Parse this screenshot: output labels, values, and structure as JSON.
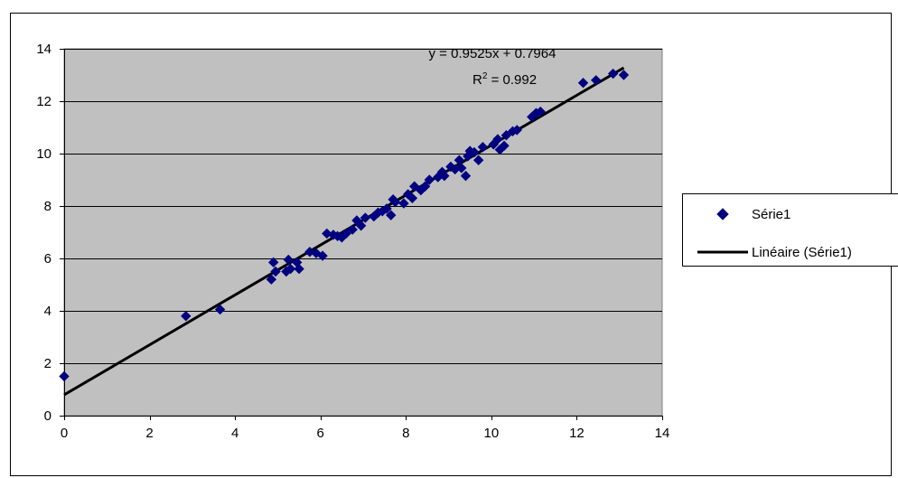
{
  "chart_data": {
    "type": "scatter",
    "title": "",
    "xlabel": "",
    "ylabel": "",
    "xlim": [
      0,
      14
    ],
    "ylim": [
      0,
      14
    ],
    "x_ticks": [
      "0",
      "2",
      "4",
      "6",
      "8",
      "10",
      "12",
      "14"
    ],
    "y_ticks": [
      "0",
      "2",
      "4",
      "6",
      "8",
      "10",
      "12",
      "14"
    ],
    "grid": "horizontal",
    "plot_background": "#C0C0C0",
    "legend_position": "right",
    "series": [
      {
        "name": "Série1",
        "color": "#000080",
        "marker": "diamond",
        "points": [
          [
            0.0,
            1.5
          ],
          [
            2.85,
            3.8
          ],
          [
            3.65,
            4.05
          ],
          [
            4.85,
            5.2
          ],
          [
            4.9,
            5.85
          ],
          [
            4.95,
            5.5
          ],
          [
            5.2,
            5.5
          ],
          [
            5.25,
            5.95
          ],
          [
            5.3,
            5.6
          ],
          [
            5.45,
            5.85
          ],
          [
            5.5,
            5.6
          ],
          [
            5.75,
            6.25
          ],
          [
            5.9,
            6.2
          ],
          [
            6.05,
            6.1
          ],
          [
            6.15,
            6.95
          ],
          [
            6.3,
            6.9
          ],
          [
            6.4,
            6.85
          ],
          [
            6.5,
            6.8
          ],
          [
            6.6,
            6.95
          ],
          [
            6.75,
            7.1
          ],
          [
            6.85,
            7.45
          ],
          [
            6.95,
            7.25
          ],
          [
            7.05,
            7.55
          ],
          [
            7.25,
            7.6
          ],
          [
            7.35,
            7.75
          ],
          [
            7.45,
            7.8
          ],
          [
            7.55,
            7.9
          ],
          [
            7.65,
            7.65
          ],
          [
            7.7,
            8.25
          ],
          [
            7.75,
            8.15
          ],
          [
            7.95,
            8.1
          ],
          [
            8.05,
            8.45
          ],
          [
            8.15,
            8.3
          ],
          [
            8.2,
            8.75
          ],
          [
            8.35,
            8.6
          ],
          [
            8.45,
            8.75
          ],
          [
            8.55,
            9.0
          ],
          [
            8.75,
            9.1
          ],
          [
            8.85,
            9.3
          ],
          [
            8.9,
            9.15
          ],
          [
            9.05,
            9.5
          ],
          [
            9.15,
            9.4
          ],
          [
            9.25,
            9.75
          ],
          [
            9.3,
            9.45
          ],
          [
            9.4,
            9.15
          ],
          [
            9.45,
            9.9
          ],
          [
            9.5,
            10.1
          ],
          [
            9.6,
            10.05
          ],
          [
            9.7,
            9.75
          ],
          [
            9.8,
            10.25
          ],
          [
            10.05,
            10.35
          ],
          [
            10.15,
            10.55
          ],
          [
            10.2,
            10.15
          ],
          [
            10.3,
            10.3
          ],
          [
            10.35,
            10.7
          ],
          [
            10.5,
            10.85
          ],
          [
            10.6,
            10.9
          ],
          [
            10.95,
            11.4
          ],
          [
            11.05,
            11.55
          ],
          [
            11.15,
            11.6
          ],
          [
            12.15,
            12.7
          ],
          [
            12.45,
            12.8
          ],
          [
            12.85,
            13.05
          ],
          [
            13.1,
            13.0
          ]
        ]
      }
    ],
    "trendline": {
      "name": "Linéaire (Série1)",
      "type": "linear",
      "slope": 0.9525,
      "intercept": 0.7964,
      "x_range": [
        0,
        13.1
      ],
      "color": "#000000"
    },
    "annotations": {
      "equation": "y = 0.9525x + 0.7964",
      "r2_prefix": "R",
      "r2_sup": "2",
      "r2_suffix": " = 0.992"
    }
  }
}
